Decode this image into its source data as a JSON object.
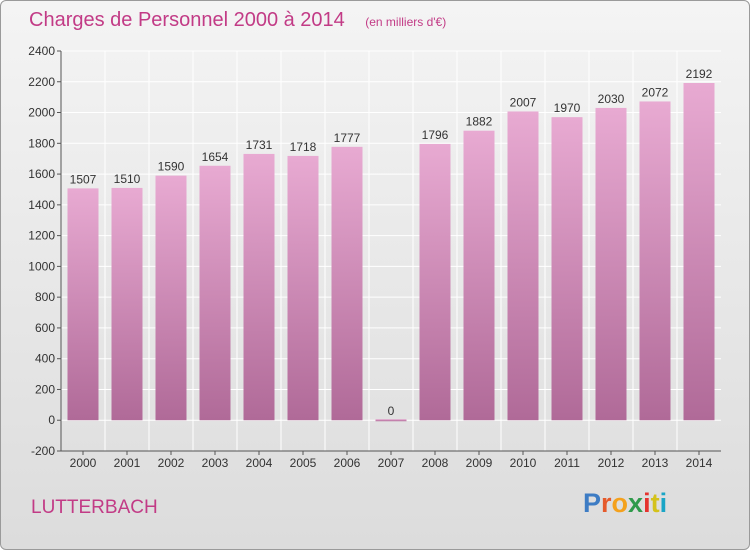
{
  "header": {
    "title": "Charges de Personnel 2000 à 2014",
    "subtitle": "(en milliers d'€)"
  },
  "footer": {
    "town": "LUTTERBACH",
    "logo": "Proxiti",
    "logo_colors": [
      "#3d7cc4",
      "#e55a2b",
      "#f4a11d",
      "#2f9a4b",
      "#e5322e",
      "#d4c21b",
      "#1aa5c6"
    ]
  },
  "colors": {
    "accent": "#c23b86",
    "bar_top": "#e8aad2",
    "bar_bottom": "#b06a98",
    "grid": "#ffffff"
  },
  "chart_data": {
    "type": "bar",
    "title": "Charges de Personnel 2000 à 2014",
    "subtitle": "(en milliers d'€)",
    "categories": [
      "2000",
      "2001",
      "2002",
      "2003",
      "2004",
      "2005",
      "2006",
      "2007",
      "2008",
      "2009",
      "2010",
      "2011",
      "2012",
      "2013",
      "2014"
    ],
    "values": [
      1507,
      1510,
      1590,
      1654,
      1731,
      1718,
      1777,
      0,
      1796,
      1882,
      2007,
      1970,
      2030,
      2072,
      2192
    ],
    "ylim": [
      -200,
      2400
    ],
    "yticks": [
      -200,
      0,
      200,
      400,
      600,
      800,
      1000,
      1200,
      1400,
      1600,
      1800,
      2000,
      2200,
      2400
    ],
    "grid": true,
    "xlabel": "",
    "ylabel": ""
  }
}
